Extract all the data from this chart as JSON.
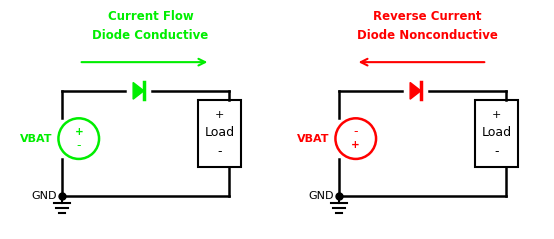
{
  "bg_color": "#ffffff",
  "green": "#00ee00",
  "red": "#ff0000",
  "black": "#000000",
  "title1_line1": "Current Flow",
  "title1_line2": "Diode Conductive",
  "title2_line1": "Reverse Current",
  "title2_line2": "Diode Nonconductive",
  "vbat_label": "VBAT",
  "gnd_label": "GND",
  "load_label": "Load",
  "plus": "+",
  "minus": "-",
  "fig_width": 5.54,
  "fig_height": 2.39,
  "dpi": 100
}
